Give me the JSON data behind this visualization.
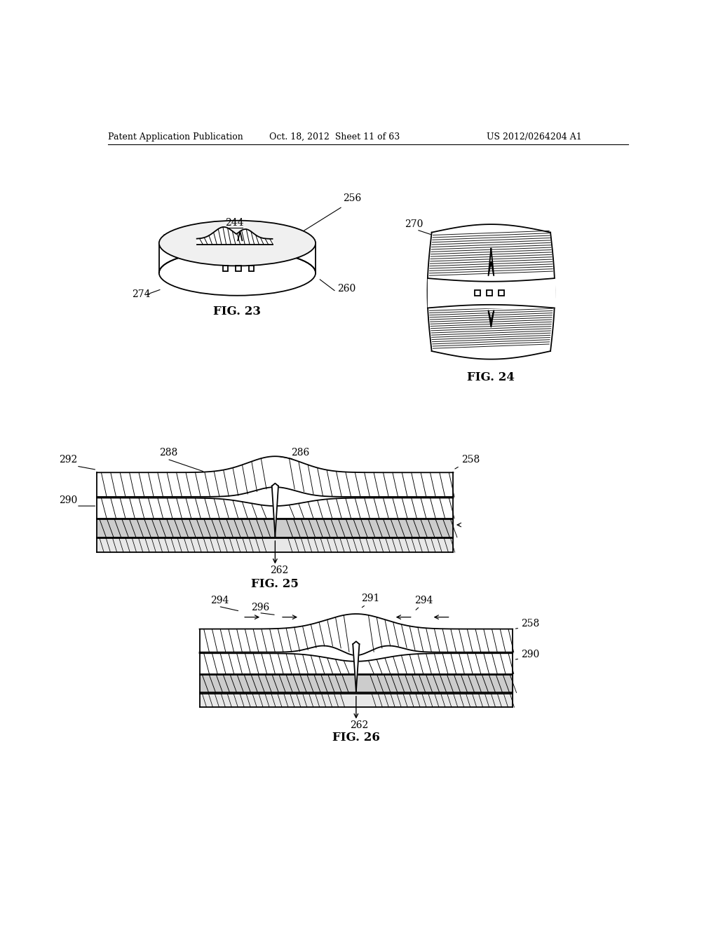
{
  "title_left": "Patent Application Publication",
  "title_center": "Oct. 18, 2012  Sheet 11 of 63",
  "title_right": "US 2012/0264204 A1",
  "fig23_label": "FIG. 23",
  "fig24_label": "FIG. 24",
  "fig25_label": "FIG. 25",
  "fig26_label": "FIG. 26",
  "bg_color": "#ffffff",
  "line_color": "#000000",
  "label_fontsize": 10,
  "header_fontsize": 9
}
